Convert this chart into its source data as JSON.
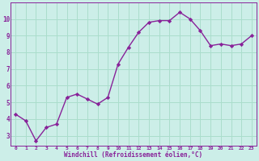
{
  "x": [
    0,
    1,
    2,
    3,
    4,
    5,
    6,
    7,
    8,
    9,
    10,
    11,
    12,
    13,
    14,
    15,
    16,
    17,
    18,
    19,
    20,
    21,
    22,
    23
  ],
  "y": [
    4.3,
    3.9,
    2.7,
    3.5,
    3.7,
    5.3,
    5.5,
    5.2,
    4.9,
    5.3,
    7.3,
    8.3,
    9.2,
    9.8,
    9.9,
    9.9,
    10.4,
    10.0,
    9.3,
    8.4,
    8.5,
    8.4,
    8.5,
    9.0
  ],
  "line_color": "#882299",
  "marker": "D",
  "markersize": 2.2,
  "linewidth": 1.0,
  "bg_color": "#cceee8",
  "grid_color": "#aaddcc",
  "xlabel": "Windchill (Refroidissement éolien,°C)",
  "xlabel_color": "#882299",
  "tick_color": "#882299",
  "ylabel_ticks": [
    3,
    4,
    5,
    6,
    7,
    8,
    9,
    10
  ],
  "xtick_labels": [
    "0",
    "1",
    "2",
    "3",
    "4",
    "5",
    "6",
    "7",
    "8",
    "9",
    "10",
    "11",
    "12",
    "13",
    "14",
    "15",
    "16",
    "17",
    "18",
    "19",
    "20",
    "21",
    "22",
    "23"
  ],
  "xlim": [
    -0.5,
    23.5
  ],
  "ylim": [
    2.4,
    11.0
  ]
}
